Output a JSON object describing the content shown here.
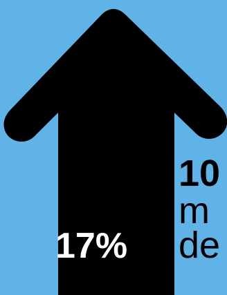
{
  "arrow": {
    "icon": "up-arrow-icon",
    "fill": "#000000"
  },
  "stat": {
    "percent": "17%"
  },
  "side": {
    "heading": "10",
    "line1": "m",
    "line2": "de"
  },
  "colors": {
    "background": "#5fb3e7",
    "arrow": "#000000",
    "percent_text": "#ffffff",
    "side_text": "#000000"
  }
}
